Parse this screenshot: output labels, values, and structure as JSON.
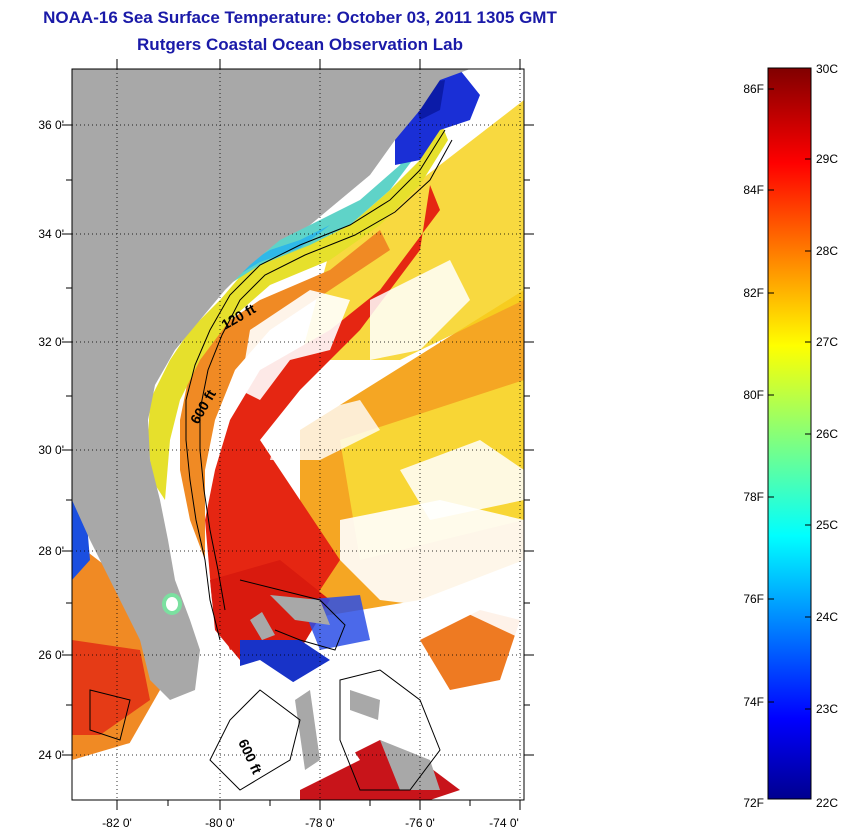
{
  "header": {
    "title": "NOAA-16 Sea Surface Temperature:  October 03, 2011 1305 GMT",
    "subtitle": "Rutgers Coastal Ocean Observation Lab"
  },
  "map": {
    "lat_labels": [
      "36 0'",
      "34 0'",
      "32 0'",
      "30 0'",
      "28 0'",
      "26 0'",
      "24 0'"
    ],
    "lon_labels": [
      "-82 0'",
      "-80 0'",
      "-78 0'",
      "-76 0'",
      "-74 0'"
    ],
    "contour_labels": [
      "120 ft",
      "600 ft",
      "600 ft"
    ],
    "colors": {
      "land": "#a8a8a8",
      "cloud": "#ffffff",
      "grid": "#000000"
    }
  },
  "colorbar": {
    "fahrenheit_labels": [
      "86F",
      "84F",
      "82F",
      "80F",
      "78F",
      "76F",
      "74F",
      "72F"
    ],
    "celsius_labels": [
      "30C",
      "29C",
      "28C",
      "27C",
      "26C",
      "25C",
      "24C",
      "23C",
      "22C"
    ],
    "range_c": [
      22,
      30
    ],
    "colormap": "jet"
  }
}
